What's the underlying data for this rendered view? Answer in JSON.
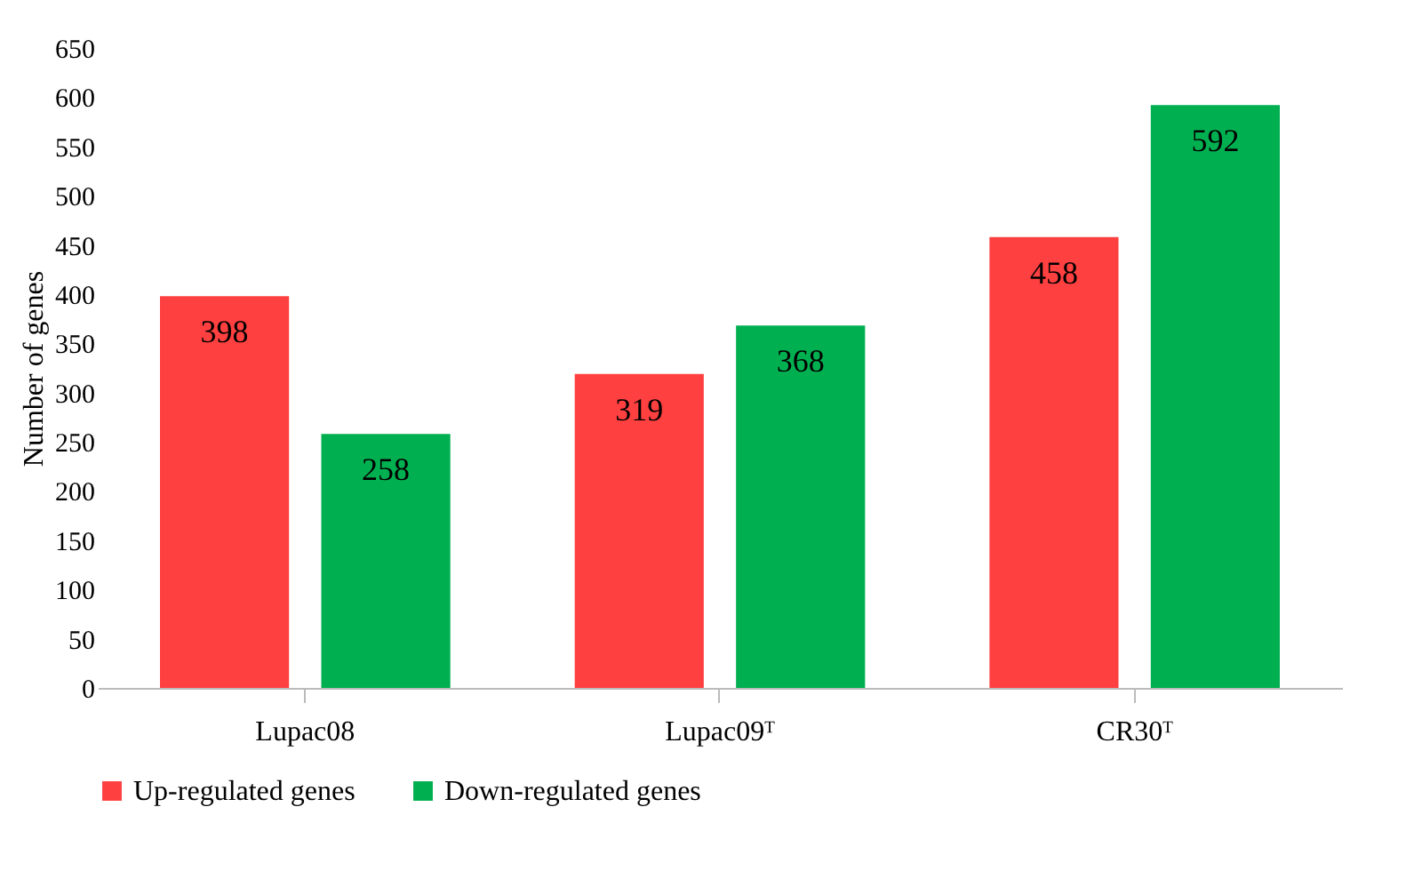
{
  "chart_data": {
    "type": "bar",
    "ylabel": "Number of genes",
    "categories": [
      "Lupac08",
      "Lupac09ᵀ",
      "CR30ᵀ"
    ],
    "series": [
      {
        "name": "Up-regulated genes",
        "color": "#ff4040",
        "values": [
          398,
          319,
          458
        ]
      },
      {
        "name": "Down-regulated genes",
        "color": "#00b050",
        "values": [
          258,
          368,
          592
        ]
      }
    ],
    "ylim": [
      0,
      650
    ],
    "yticks": [
      0,
      50,
      100,
      150,
      200,
      250,
      300,
      350,
      400,
      450,
      500,
      550,
      600,
      650
    ],
    "grid": false,
    "legend": "bottom",
    "data_labels": true
  }
}
